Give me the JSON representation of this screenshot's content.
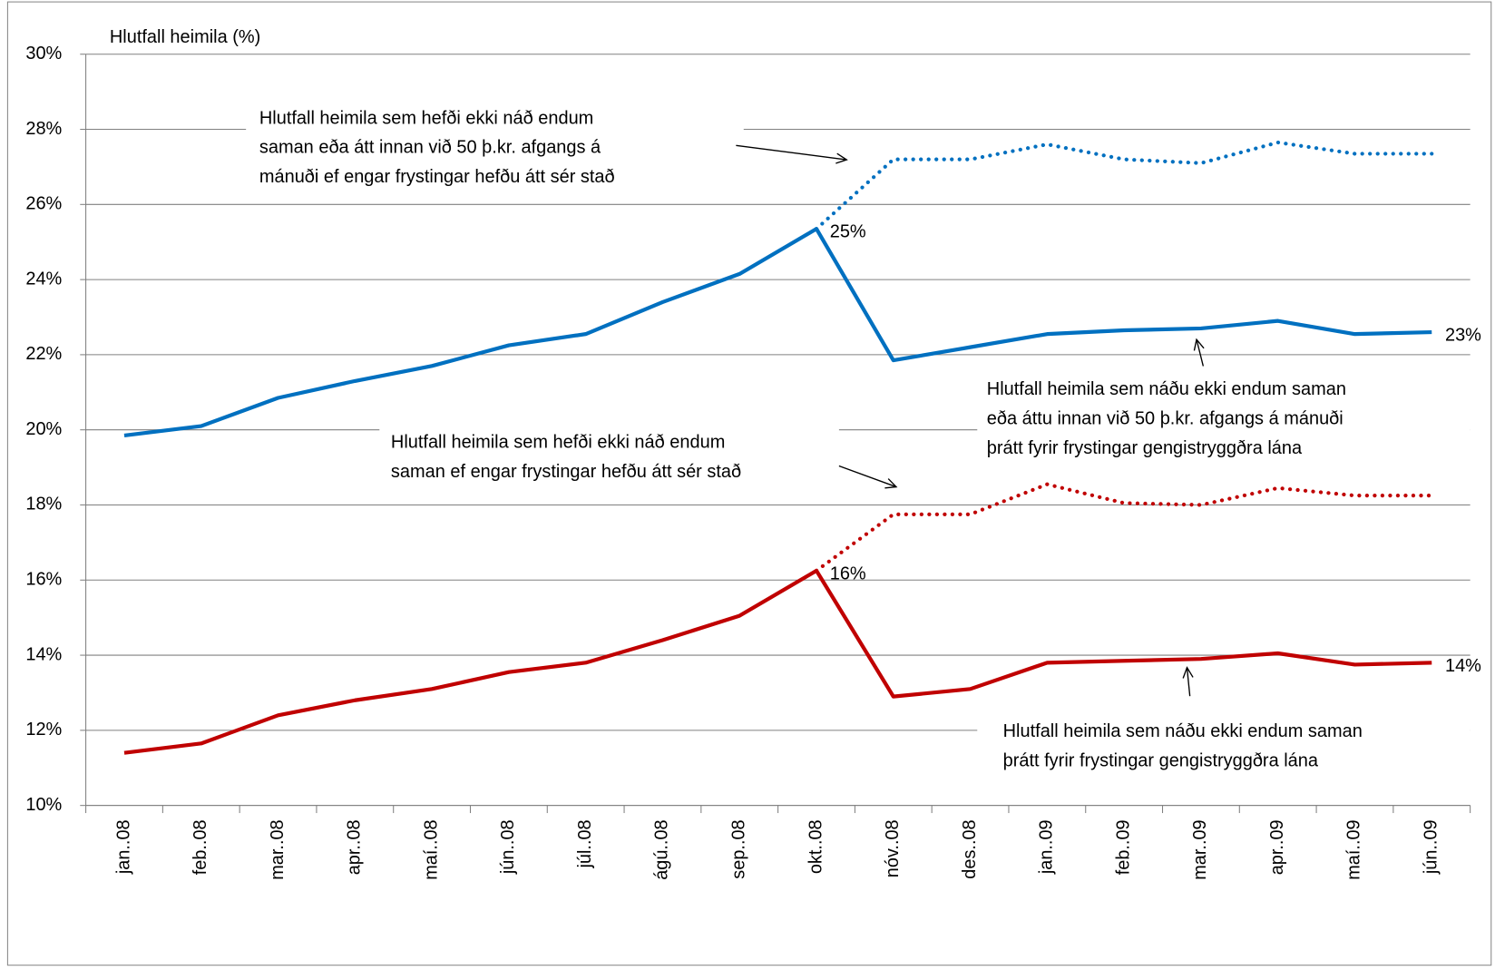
{
  "chart_data": {
    "type": "line",
    "y_label": "Hlutfall heimila (%)",
    "categories": [
      "jan..08",
      "feb..08",
      "mar..08",
      "apr..08",
      "maí..08",
      "jún..08",
      "júl..08",
      "ágú..08",
      "sep..08",
      "okt..08",
      "nóv..08",
      "des..08",
      "jan..09",
      "feb..09",
      "mar..09",
      "apr..09",
      "maí..09",
      "jún..09"
    ],
    "series": [
      {
        "color": "#0070c0",
        "style": "solid",
        "values": [
          19.85,
          20.1,
          20.85,
          21.3,
          21.7,
          22.25,
          22.55,
          23.4,
          24.15,
          25.35,
          21.85,
          22.2,
          22.55,
          22.65,
          22.7,
          22.9,
          22.55,
          22.6
        ],
        "value_labels": [
          null,
          null,
          null,
          null,
          null,
          null,
          null,
          null,
          null,
          "25%",
          null,
          null,
          null,
          null,
          null,
          null,
          null,
          "23%"
        ]
      },
      {
        "color": "#0070c0",
        "style": "dotted",
        "values": [
          null,
          null,
          null,
          null,
          null,
          null,
          null,
          null,
          null,
          25.35,
          27.2,
          27.2,
          27.6,
          27.2,
          27.1,
          27.65,
          27.35,
          27.35
        ]
      },
      {
        "color": "#c00000",
        "style": "solid",
        "values": [
          11.4,
          11.65,
          12.4,
          12.8,
          13.1,
          13.55,
          13.8,
          14.4,
          15.05,
          16.25,
          12.9,
          13.1,
          13.8,
          13.85,
          13.9,
          14.05,
          13.75,
          13.8
        ],
        "value_labels": [
          null,
          null,
          null,
          null,
          null,
          null,
          null,
          null,
          null,
          "16%",
          null,
          null,
          null,
          null,
          null,
          null,
          null,
          "14%"
        ]
      },
      {
        "color": "#c00000",
        "style": "dotted",
        "values": [
          null,
          null,
          null,
          null,
          null,
          null,
          null,
          null,
          null,
          16.25,
          17.75,
          17.75,
          18.55,
          18.05,
          18.0,
          18.45,
          18.25,
          18.25
        ]
      }
    ],
    "ylim": [
      10,
      30
    ],
    "yticks": [
      {
        "value": 10,
        "label": "10%"
      },
      {
        "value": 12,
        "label": "12%"
      },
      {
        "value": 14,
        "label": "14%"
      },
      {
        "value": 16,
        "label": "16%"
      },
      {
        "value": 18,
        "label": "18%"
      },
      {
        "value": 20,
        "label": "20%"
      },
      {
        "value": 22,
        "label": "22%"
      },
      {
        "value": 24,
        "label": "24%"
      },
      {
        "value": 26,
        "label": "26%"
      },
      {
        "value": 28,
        "label": "28%"
      },
      {
        "value": 30,
        "label": "30%"
      }
    ],
    "grid": true,
    "annotations": [
      {
        "lines": [
          "Hlutfall heimila sem hefði ekki náð endum",
          "saman eða átt innan við 50 þ.kr. afgangs á",
          "mánuði ef engar frystingar hefðu átt sér stað"
        ]
      },
      {
        "lines": [
          "Hlutfall heimila sem náðu ekki endum saman",
          "eða áttu innan við 50 þ.kr. afgangs á mánuði",
          "þrátt fyrir frystingar gengistryggðra lána"
        ]
      },
      {
        "lines": [
          "Hlutfall heimila sem hefði ekki náð endum",
          "saman ef engar frystingar hefðu átt sér stað"
        ]
      },
      {
        "lines": [
          "Hlutfall heimila sem náðu ekki endum saman",
          "þrátt fyrir frystingar gengistryggðra lána"
        ]
      }
    ]
  }
}
